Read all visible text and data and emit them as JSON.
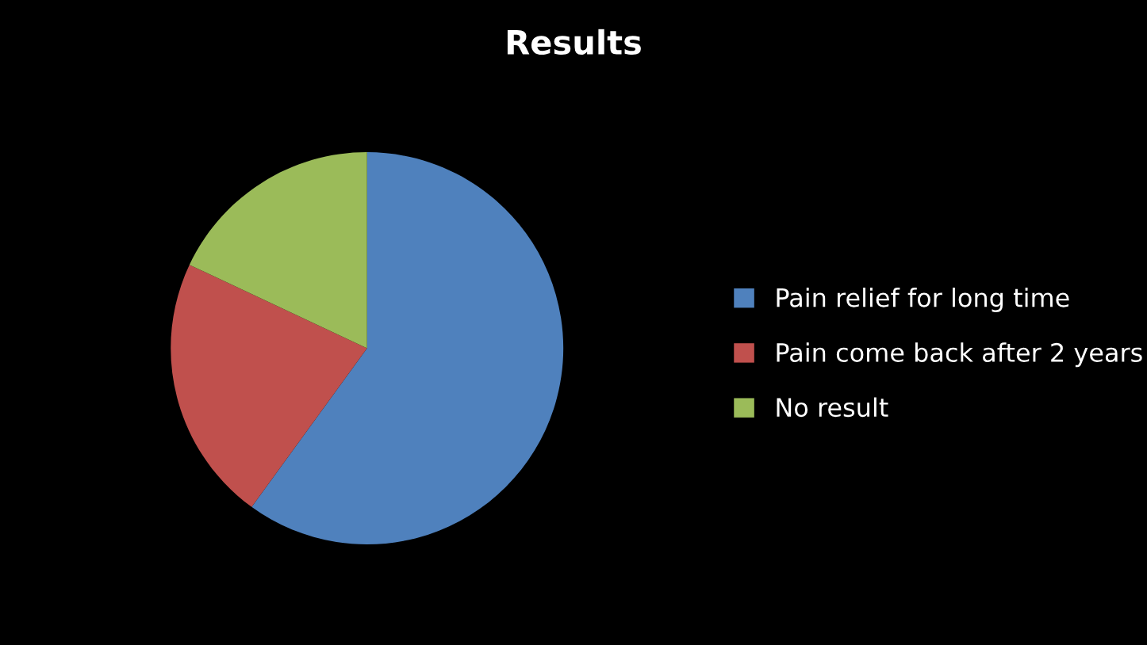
{
  "chart_data": {
    "type": "pie",
    "title": "Results",
    "categories": [
      "Pain relief for long time",
      "Pain come back after 2 years",
      "No result"
    ],
    "values": [
      60,
      22,
      18
    ],
    "colors": [
      "#4f81bd",
      "#c0504d",
      "#9bbb59"
    ],
    "legend": "right"
  }
}
